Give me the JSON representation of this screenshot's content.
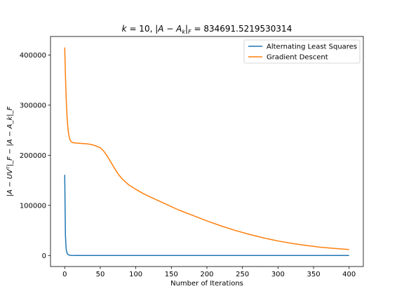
{
  "chart_data": {
    "type": "line",
    "title": "k = 10, |A − A_k|_F = 834691.5219530314",
    "title_parts": {
      "prefix": "k",
      "eq1": " = 10, |",
      "a": "A",
      "minus": " − ",
      "ak": "A",
      "ksub": "k",
      "bar": "|",
      "fsub": "F",
      "value": " = 834691.5219530314"
    },
    "xlabel": "Number of Iterations",
    "ylabel": "|A − UVᵀ|_F − |A − A_k|_F",
    "xlim": [
      -20,
      420
    ],
    "ylim": [
      -22000,
      437000
    ],
    "x_ticks": [
      0,
      50,
      100,
      150,
      200,
      250,
      300,
      350,
      400
    ],
    "y_ticks": [
      0,
      100000,
      200000,
      300000,
      400000
    ],
    "legend_position": "top-right",
    "grid": false,
    "series": [
      {
        "name": "Alternating Least Squares",
        "color": "#1f77b4",
        "x": [
          0,
          1,
          2,
          3,
          4,
          5,
          6,
          8,
          10,
          15,
          20,
          30,
          50,
          100,
          200,
          300,
          400
        ],
        "y": [
          161000,
          40000,
          14000,
          6000,
          3000,
          1600,
          900,
          450,
          250,
          100,
          50,
          20,
          10,
          5,
          2,
          1,
          0
        ]
      },
      {
        "name": "Gradient Descent",
        "color": "#ff7f0e",
        "x": [
          0,
          1,
          2,
          3,
          4,
          5,
          6,
          7,
          8,
          10,
          12,
          15,
          20,
          25,
          30,
          35,
          40,
          45,
          50,
          55,
          60,
          65,
          70,
          75,
          80,
          90,
          100,
          110,
          120,
          140,
          160,
          180,
          200,
          220,
          240,
          260,
          280,
          300,
          320,
          340,
          360,
          380,
          400
        ],
        "y": [
          415000,
          360000,
          315000,
          285000,
          262000,
          248000,
          239000,
          233000,
          229000,
          226000,
          225000,
          224500,
          224000,
          223500,
          223000,
          222000,
          220500,
          218000,
          215000,
          208000,
          198000,
          186000,
          174000,
          163000,
          154000,
          141000,
          132000,
          124000,
          117000,
          104000,
          91000,
          80000,
          69000,
          59000,
          50000,
          42000,
          35000,
          29000,
          24000,
          20000,
          16500,
          14000,
          12000
        ]
      }
    ]
  }
}
